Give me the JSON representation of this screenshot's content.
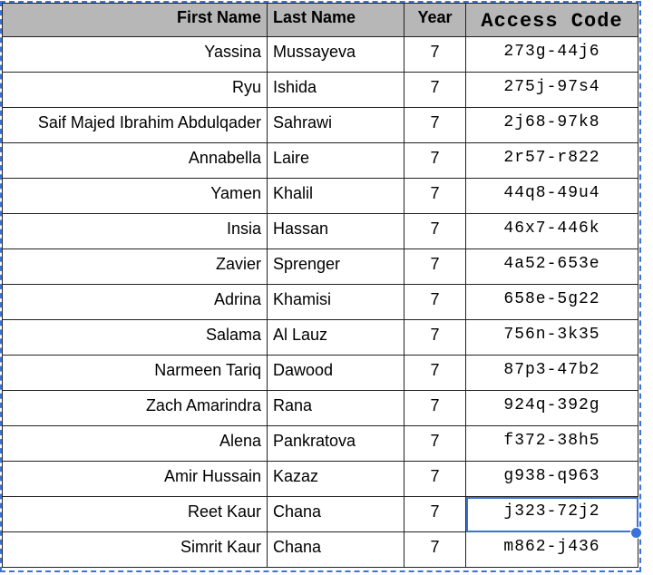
{
  "headers": {
    "first_name": "First Name",
    "last_name": "Last Name",
    "year": "Year",
    "access_code": "Access Code"
  },
  "rows": [
    {
      "first": "Yassina",
      "last": "Mussayeva",
      "year": "7",
      "code": "273g-44j6"
    },
    {
      "first": "Ryu",
      "last": "Ishida",
      "year": "7",
      "code": "275j-97s4"
    },
    {
      "first": "Saif Majed Ibrahim Abdulqader",
      "last": "Sahrawi",
      "year": "7",
      "code": "2j68-97k8"
    },
    {
      "first": "Annabella",
      "last": "Laire",
      "year": "7",
      "code": "2r57-r822"
    },
    {
      "first": "Yamen",
      "last": "Khalil",
      "year": "7",
      "code": "44q8-49u4"
    },
    {
      "first": "Insia",
      "last": "Hassan",
      "year": "7",
      "code": "46x7-446k"
    },
    {
      "first": "Zavier",
      "last": "Sprenger",
      "year": "7",
      "code": "4a52-653e"
    },
    {
      "first": "Adrina",
      "last": "Khamisi",
      "year": "7",
      "code": "658e-5g22"
    },
    {
      "first": "Salama",
      "last": "Al Lauz",
      "year": "7",
      "code": "756n-3k35"
    },
    {
      "first": "Narmeen Tariq",
      "last": "Dawood",
      "year": "7",
      "code": "87p3-47b2"
    },
    {
      "first": "Zach Amarindra",
      "last": "Rana",
      "year": "7",
      "code": "924q-392g"
    },
    {
      "first": "Alena",
      "last": "Pankratova",
      "year": "7",
      "code": "f372-38h5"
    },
    {
      "first": "Amir Hussain",
      "last": "Kazaz",
      "year": "7",
      "code": "g938-q963"
    },
    {
      "first": "Reet Kaur",
      "last": "Chana",
      "year": "7",
      "code": "j323-72j2"
    },
    {
      "first": "Simrit Kaur",
      "last": "Chana",
      "year": "7",
      "code": "m862-j436"
    }
  ],
  "selected_row_index": 13,
  "colors": {
    "header_background": "#b7b7b7",
    "selection_accent": "#3b73d8",
    "grid_lines": "#222222"
  }
}
